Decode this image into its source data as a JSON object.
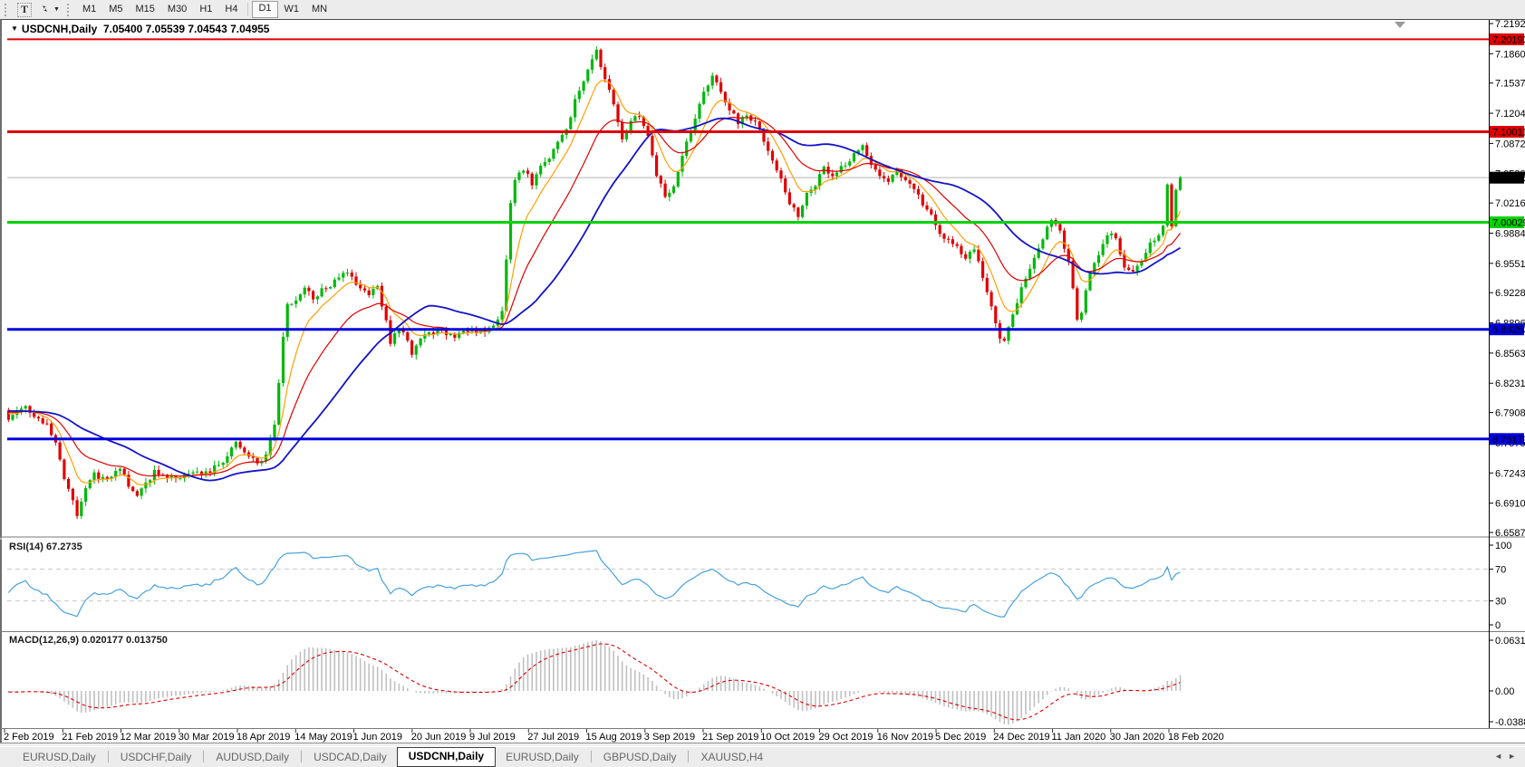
{
  "toolbar": {
    "text_tool_label": "T",
    "pointer_tool_caret": "▼",
    "timeframes": [
      "M1",
      "M5",
      "M15",
      "M30",
      "H1",
      "H4",
      "D1",
      "W1",
      "MN"
    ],
    "active_timeframe": "D1"
  },
  "titlebar": {
    "caret": "▼",
    "symbol": "USDCNH,Daily",
    "ohlc": "7.05400 7.05539 7.04543 7.04955"
  },
  "price_axis": {
    "ticks": [
      "7.21925",
      "7.18600",
      "7.15370",
      "7.12045",
      "7.08720",
      "7.05395",
      "7.02165",
      "6.98840",
      "6.95515",
      "6.92285",
      "6.88960",
      "6.85635",
      "6.82310",
      "6.79080",
      "6.75755",
      "6.72430",
      "6.69105",
      "6.65875"
    ]
  },
  "rsi_panel": {
    "header": "RSI(14) 67.2735",
    "ticks": [
      "100",
      "70",
      "30",
      "0"
    ],
    "dashed_levels": [
      70,
      30
    ]
  },
  "macd_panel": {
    "header": "MACD(12,26,9) 0.020177 0.013750",
    "ticks": [
      "0.063113",
      "0.00",
      "-0.038872"
    ]
  },
  "date_axis": {
    "labels": [
      "2 Feb 2019",
      "21 Feb 2019",
      "12 Mar 2019",
      "30 Mar 2019",
      "18 Apr 2019",
      "14 May 2019",
      "1 Jun 2019",
      "20 Jun 2019",
      "9 Jul 2019",
      "27 Jul 2019",
      "15 Aug 2019",
      "3 Sep 2019",
      "21 Sep 2019",
      "10 Oct 2019",
      "29 Oct 2019",
      "16 Nov 2019",
      "5 Dec 2019",
      "24 Dec 2019",
      "11 Jan 2020",
      "30 Jan 2020",
      "18 Feb 2020"
    ]
  },
  "tab_bar": {
    "tabs": [
      {
        "label": "EURUSD,Daily",
        "active": false
      },
      {
        "label": "USDCHF,Daily",
        "active": false
      },
      {
        "label": "AUDUSD,Daily",
        "active": false
      },
      {
        "label": "USDCAD,Daily",
        "active": false
      },
      {
        "label": "USDCNH,Daily",
        "active": true
      },
      {
        "label": "EURUSD,Daily",
        "active": false
      },
      {
        "label": "GBPUSD,Daily",
        "active": false
      },
      {
        "label": "XAUUSD,H4",
        "active": false
      }
    ],
    "scroll_left": "◄",
    "scroll_right": "►"
  },
  "chart_data": {
    "type": "candlestick",
    "symbol": "USDCNH",
    "timeframe": "Daily",
    "bar_count": 274,
    "last_close": 7.04955,
    "ylim": [
      6.65875,
      7.21925
    ],
    "hlines": [
      {
        "price": 7.20193,
        "label": "7.20193",
        "color": "#dd0000",
        "text_color": "#ffffff",
        "width": 2
      },
      {
        "price": 7.10011,
        "label": "7.10011",
        "color": "#dd0000",
        "text_color": "#ffffff",
        "width": 3
      },
      {
        "price": 7.00029,
        "label": "7.00029",
        "color": "#00d300",
        "text_color": "#000000",
        "width": 3
      },
      {
        "price": 6.8825,
        "label": "6.88250",
        "color": "#0000dd",
        "text_color": "#ffffff",
        "width": 3
      },
      {
        "price": 6.76171,
        "label": "6.76171",
        "color": "#0000dd",
        "text_color": "#ffffff",
        "width": 3
      }
    ],
    "current_price": {
      "price": 7.04955,
      "label": "7.04955",
      "line_color": "#b5b5b5",
      "box_color": "#000000",
      "text_color": "#ffffff"
    },
    "colors": {
      "bull": "#00b80c",
      "bear": "#e00000",
      "ma_fast": "#ffa000",
      "ma_mid": "#e00000",
      "ma_slow": "#1414c8",
      "rsi": "#46a2de",
      "macd_hist": "#c0c0c0",
      "macd_signal": "#e00000",
      "rsi_level_dash": "#c8c8c8"
    },
    "moving_averages": [
      {
        "type": "ema",
        "period": 8,
        "color_key": "ma_fast",
        "width": 1.2
      },
      {
        "type": "ema",
        "period": 20,
        "color_key": "ma_mid",
        "width": 1.2
      },
      {
        "type": "sma",
        "period": 35,
        "color_key": "ma_slow",
        "width": 1.8
      }
    ],
    "indicators": {
      "rsi": {
        "period": 14,
        "value": 67.2735
      },
      "macd": {
        "fast": 12,
        "slow": 26,
        "signal": 9,
        "value": 0.020177,
        "signal_value": 0.01375
      }
    },
    "prehistory": {
      "bars": 60,
      "start": 6.802,
      "end": 6.79
    },
    "anchors": [
      [
        0,
        6.785
      ],
      [
        2,
        6.791
      ],
      [
        4,
        6.798
      ],
      [
        6,
        6.789
      ],
      [
        9,
        6.778
      ],
      [
        11,
        6.756
      ],
      [
        13,
        6.716
      ],
      [
        15,
        6.696
      ],
      [
        16,
        6.679
      ],
      [
        18,
        6.706
      ],
      [
        20,
        6.722
      ],
      [
        23,
        6.718
      ],
      [
        26,
        6.728
      ],
      [
        28,
        6.712
      ],
      [
        30,
        6.699
      ],
      [
        32,
        6.711
      ],
      [
        34,
        6.726
      ],
      [
        37,
        6.721
      ],
      [
        40,
        6.718
      ],
      [
        43,
        6.727
      ],
      [
        46,
        6.724
      ],
      [
        49,
        6.734
      ],
      [
        51,
        6.743
      ],
      [
        53,
        6.757
      ],
      [
        55,
        6.748
      ],
      [
        58,
        6.734
      ],
      [
        60,
        6.743
      ],
      [
        62,
        6.776
      ],
      [
        63,
        6.822
      ],
      [
        64,
        6.873
      ],
      [
        65,
        6.908
      ],
      [
        67,
        6.916
      ],
      [
        69,
        6.929
      ],
      [
        71,
        6.917
      ],
      [
        73,
        6.926
      ],
      [
        75,
        6.931
      ],
      [
        77,
        6.939
      ],
      [
        79,
        6.947
      ],
      [
        81,
        6.933
      ],
      [
        84,
        6.923
      ],
      [
        86,
        6.929
      ],
      [
        88,
        6.891
      ],
      [
        89,
        6.867
      ],
      [
        91,
        6.885
      ],
      [
        93,
        6.869
      ],
      [
        94,
        6.853
      ],
      [
        96,
        6.873
      ],
      [
        98,
        6.879
      ],
      [
        101,
        6.881
      ],
      [
        104,
        6.875
      ],
      [
        107,
        6.879
      ],
      [
        110,
        6.88
      ],
      [
        113,
        6.884
      ],
      [
        115,
        6.901
      ],
      [
        116,
        6.962
      ],
      [
        117,
        7.022
      ],
      [
        118,
        7.049
      ],
      [
        120,
        7.059
      ],
      [
        122,
        7.043
      ],
      [
        124,
        7.061
      ],
      [
        126,
        7.073
      ],
      [
        128,
        7.089
      ],
      [
        130,
        7.101
      ],
      [
        132,
        7.136
      ],
      [
        134,
        7.156
      ],
      [
        136,
        7.179
      ],
      [
        137,
        7.191
      ],
      [
        138,
        7.173
      ],
      [
        140,
        7.146
      ],
      [
        142,
        7.113
      ],
      [
        143,
        7.089
      ],
      [
        145,
        7.113
      ],
      [
        147,
        7.119
      ],
      [
        149,
        7.093
      ],
      [
        151,
        7.053
      ],
      [
        153,
        7.029
      ],
      [
        155,
        7.039
      ],
      [
        157,
        7.076
      ],
      [
        159,
        7.101
      ],
      [
        161,
        7.131
      ],
      [
        163,
        7.153
      ],
      [
        164,
        7.163
      ],
      [
        166,
        7.141
      ],
      [
        168,
        7.125
      ],
      [
        170,
        7.111
      ],
      [
        172,
        7.119
      ],
      [
        174,
        7.111
      ],
      [
        176,
        7.091
      ],
      [
        178,
        7.071
      ],
      [
        180,
        7.046
      ],
      [
        182,
        7.021
      ],
      [
        184,
        7.009
      ],
      [
        186,
        7.031
      ],
      [
        188,
        7.043
      ],
      [
        190,
        7.059
      ],
      [
        192,
        7.049
      ],
      [
        194,
        7.061
      ],
      [
        196,
        7.069
      ],
      [
        198,
        7.079
      ],
      [
        199,
        7.086
      ],
      [
        201,
        7.066
      ],
      [
        203,
        7.053
      ],
      [
        205,
        7.047
      ],
      [
        207,
        7.056
      ],
      [
        209,
        7.049
      ],
      [
        211,
        7.036
      ],
      [
        213,
        7.021
      ],
      [
        215,
        7.009
      ],
      [
        217,
        6.986
      ],
      [
        219,
        6.979
      ],
      [
        221,
        6.973
      ],
      [
        223,
        6.963
      ],
      [
        225,
        6.973
      ],
      [
        227,
        6.939
      ],
      [
        229,
        6.909
      ],
      [
        231,
        6.873
      ],
      [
        232,
        6.869
      ],
      [
        234,
        6.896
      ],
      [
        236,
        6.929
      ],
      [
        238,
        6.951
      ],
      [
        240,
        6.969
      ],
      [
        242,
        6.993
      ],
      [
        243,
        7.003
      ],
      [
        245,
        6.989
      ],
      [
        247,
        6.959
      ],
      [
        248,
        6.929
      ],
      [
        249,
        6.893
      ],
      [
        250,
        6.903
      ],
      [
        252,
        6.946
      ],
      [
        254,
        6.963
      ],
      [
        256,
        6.989
      ],
      [
        258,
        6.983
      ],
      [
        260,
        6.953
      ],
      [
        262,
        6.949
      ],
      [
        264,
        6.959
      ],
      [
        266,
        6.976
      ],
      [
        268,
        6.989
      ],
      [
        269,
        6.999
      ],
      [
        270,
        7.042
      ],
      [
        271,
        6.996
      ],
      [
        272,
        7.036
      ],
      [
        273,
        7.04955
      ]
    ]
  }
}
